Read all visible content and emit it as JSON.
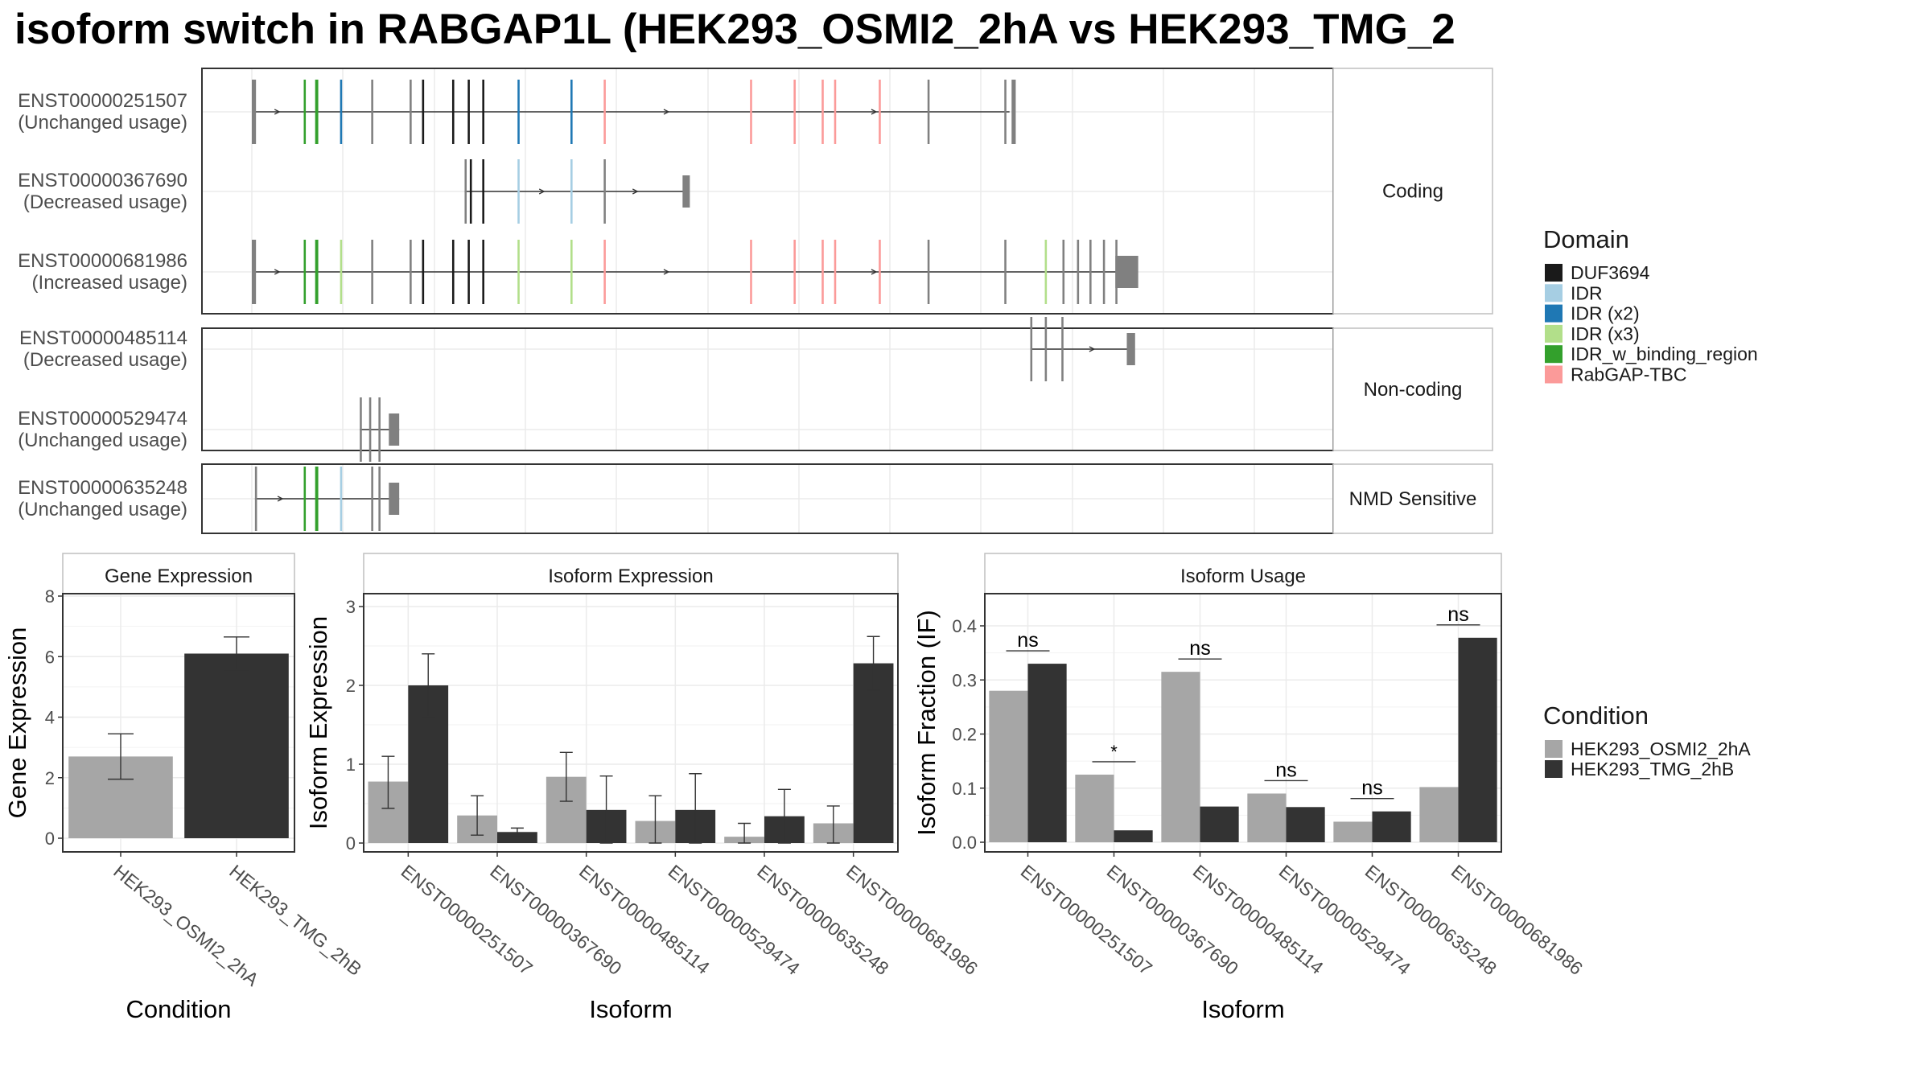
{
  "title": "isoform switch in RABGAP1L (HEK293_OSMI2_2hA vs HEK293_TMG_2",
  "colors": {
    "DUF3694": "#1a1a1a",
    "IDR": "#a6cee3",
    "IDR (x2)": "#1f78b4",
    "IDR (x3)": "#b2df8a",
    "IDR_w_binding_region": "#33a02c",
    "RabGAP-TBC": "#fb9a99",
    "none": "#808080",
    "cond1": "#a6a6a6",
    "cond2": "#333333"
  },
  "structure": {
    "facets": [
      {
        "label": "Coding",
        "rows": [
          {
            "id": "ENST00000251507",
            "usage": "(Unchanged usage)"
          },
          {
            "id": "ENST00000367690",
            "usage": "(Decreased usage)"
          },
          {
            "id": "ENST00000681986",
            "usage": "(Increased usage)"
          }
        ]
      },
      {
        "label": "Non-coding",
        "rows": [
          {
            "id": "ENST00000485114",
            "usage": "(Decreased usage)"
          },
          {
            "id": "ENST00000529474",
            "usage": "(Unchanged usage)"
          }
        ]
      },
      {
        "label": "NMD Sensitive",
        "rows": [
          {
            "id": "ENST00000635248",
            "usage": "(Unchanged usage)"
          }
        ]
      }
    ],
    "transcripts": {
      "ENST00000251507": {
        "span": [
          0.0,
          0.73
        ],
        "exons": [
          [
            0.0,
            0.004,
            "none"
          ],
          [
            0.05,
            0.052,
            "IDR_w_binding_region"
          ],
          [
            0.061,
            0.064,
            "IDR_w_binding_region"
          ],
          [
            0.085,
            0.087,
            "IDR (x2)"
          ],
          [
            0.115,
            0.117,
            "none"
          ],
          [
            0.152,
            0.154,
            "none"
          ],
          [
            0.164,
            0.166,
            "DUF3694"
          ],
          [
            0.193,
            0.195,
            "DUF3694"
          ],
          [
            0.208,
            0.21,
            "DUF3694"
          ],
          [
            0.222,
            0.224,
            "DUF3694"
          ],
          [
            0.256,
            0.258,
            "IDR (x2)"
          ],
          [
            0.307,
            0.309,
            "IDR (x2)"
          ],
          [
            0.339,
            0.341,
            "RabGAP-TBC"
          ],
          [
            0.48,
            0.482,
            "RabGAP-TBC"
          ],
          [
            0.522,
            0.524,
            "RabGAP-TBC"
          ],
          [
            0.549,
            0.551,
            "RabGAP-TBC"
          ],
          [
            0.561,
            0.563,
            "RabGAP-TBC"
          ],
          [
            0.604,
            0.606,
            "RabGAP-TBC"
          ],
          [
            0.651,
            0.653,
            "none"
          ],
          [
            0.725,
            0.727,
            "none"
          ],
          [
            0.732,
            0.736,
            "none"
          ]
        ],
        "chevrons": [
          0.025,
          0.4,
          0.6
        ]
      },
      "ENST00000367690": {
        "span": [
          0.205,
          0.42
        ],
        "exons": [
          [
            0.205,
            0.207,
            "none"
          ],
          [
            0.21,
            0.212,
            "DUF3694"
          ],
          [
            0.222,
            0.224,
            "DUF3694"
          ],
          [
            0.256,
            0.258,
            "IDR"
          ],
          [
            0.307,
            0.309,
            "IDR"
          ],
          [
            0.339,
            0.341,
            "none"
          ],
          [
            0.415,
            0.422,
            "none"
          ]
        ],
        "chevrons": [
          0.28,
          0.37
        ]
      },
      "ENST00000681986": {
        "span": [
          0.0,
          0.85
        ],
        "exons": [
          [
            0.0,
            0.004,
            "none"
          ],
          [
            0.05,
            0.052,
            "IDR_w_binding_region"
          ],
          [
            0.061,
            0.064,
            "IDR_w_binding_region"
          ],
          [
            0.085,
            0.087,
            "IDR (x3)"
          ],
          [
            0.115,
            0.117,
            "none"
          ],
          [
            0.152,
            0.154,
            "none"
          ],
          [
            0.164,
            0.166,
            "DUF3694"
          ],
          [
            0.193,
            0.195,
            "DUF3694"
          ],
          [
            0.208,
            0.21,
            "DUF3694"
          ],
          [
            0.222,
            0.224,
            "DUF3694"
          ],
          [
            0.256,
            0.258,
            "IDR (x3)"
          ],
          [
            0.307,
            0.309,
            "IDR (x3)"
          ],
          [
            0.339,
            0.341,
            "RabGAP-TBC"
          ],
          [
            0.48,
            0.482,
            "RabGAP-TBC"
          ],
          [
            0.522,
            0.524,
            "RabGAP-TBC"
          ],
          [
            0.549,
            0.551,
            "RabGAP-TBC"
          ],
          [
            0.561,
            0.563,
            "RabGAP-TBC"
          ],
          [
            0.604,
            0.606,
            "RabGAP-TBC"
          ],
          [
            0.651,
            0.653,
            "none"
          ],
          [
            0.725,
            0.727,
            "none"
          ],
          [
            0.764,
            0.766,
            "IDR (x3)"
          ],
          [
            0.781,
            0.783,
            "none"
          ],
          [
            0.795,
            0.797,
            "none"
          ],
          [
            0.807,
            0.809,
            "none"
          ],
          [
            0.82,
            0.822,
            "none"
          ],
          [
            0.832,
            0.834,
            "none"
          ],
          [
            0.832,
            0.854,
            "none"
          ]
        ],
        "chevrons": [
          0.025,
          0.4,
          0.6
        ]
      },
      "ENST00000485114": {
        "span": [
          0.75,
          0.85
        ],
        "exons": [
          [
            0.75,
            0.752,
            "none"
          ],
          [
            0.764,
            0.766,
            "none"
          ],
          [
            0.78,
            0.782,
            "none"
          ],
          [
            0.843,
            0.851,
            "none"
          ]
        ],
        "chevrons": [
          0.81
        ]
      },
      "ENST00000529474": {
        "span": [
          0.104,
          0.142
        ],
        "exons": [
          [
            0.104,
            0.106,
            "none"
          ],
          [
            0.113,
            0.115,
            "none"
          ],
          [
            0.122,
            0.124,
            "none"
          ],
          [
            0.132,
            0.142,
            "none"
          ]
        ],
        "chevrons": []
      },
      "ENST00000635248": {
        "span": [
          0.003,
          0.142
        ],
        "exons": [
          [
            0.003,
            0.005,
            "none"
          ],
          [
            0.05,
            0.052,
            "IDR_w_binding_region"
          ],
          [
            0.061,
            0.064,
            "IDR_w_binding_region"
          ],
          [
            0.085,
            0.087,
            "IDR"
          ],
          [
            0.115,
            0.117,
            "none"
          ],
          [
            0.122,
            0.124,
            "none"
          ],
          [
            0.132,
            0.142,
            "none"
          ]
        ],
        "chevrons": [
          0.028
        ]
      }
    }
  },
  "legends": {
    "domain": {
      "title": "Domain",
      "items": [
        "DUF3694",
        "IDR",
        "IDR (x2)",
        "IDR (x3)",
        "IDR_w_binding_region",
        "RabGAP-TBC"
      ]
    },
    "condition": {
      "title": "Condition",
      "items": [
        "HEK293_OSMI2_2hA",
        "HEK293_TMG_2hB"
      ]
    }
  },
  "chart_data": [
    {
      "type": "bar",
      "title": "Gene Expression",
      "xlabel": "Condition",
      "ylabel": "Gene Expression",
      "ylim": [
        0,
        8
      ],
      "yticks": [
        "0",
        "2",
        "4",
        "6",
        "8"
      ],
      "categories": [
        "HEK293_OSMI2_2hA",
        "HEK293_TMG_2hB"
      ],
      "values": [
        2.7,
        6.1
      ],
      "errors": [
        [
          1.95,
          3.45
        ],
        [
          5.55,
          6.65
        ]
      ]
    },
    {
      "type": "bar",
      "title": "Isoform Expression",
      "xlabel": "Isoform",
      "ylabel": "Isoform Expression",
      "ylim": [
        0,
        3
      ],
      "yticks": [
        "0",
        "1",
        "2",
        "3"
      ],
      "categories": [
        "ENST00000251507",
        "ENST00000367690",
        "ENST00000485114",
        "ENST00000529474",
        "ENST00000635248",
        "ENST00000681986"
      ],
      "series": [
        {
          "name": "HEK293_OSMI2_2hA",
          "values": [
            0.78,
            0.35,
            0.84,
            0.28,
            0.08,
            0.25
          ],
          "errors": [
            [
              0.44,
              1.1
            ],
            [
              0.1,
              0.6
            ],
            [
              0.53,
              1.15
            ],
            [
              0.0,
              0.6
            ],
            [
              0.0,
              0.25
            ],
            [
              0.0,
              0.47
            ]
          ]
        },
        {
          "name": "HEK293_TMG_2hB",
          "values": [
            2.0,
            0.14,
            0.42,
            0.42,
            0.34,
            2.28
          ],
          "errors": [
            [
              1.6,
              2.4
            ],
            [
              0.09,
              0.19
            ],
            [
              0.0,
              0.85
            ],
            [
              0.0,
              0.88
            ],
            [
              0.0,
              0.68
            ],
            [
              1.94,
              2.62
            ]
          ]
        }
      ]
    },
    {
      "type": "bar",
      "title": "Isoform Usage",
      "xlabel": "Isoform",
      "ylabel": "Isoform Fraction (IF)",
      "ylim": [
        0,
        0.45
      ],
      "yticks": [
        "0.0",
        "0.1",
        "0.2",
        "0.3",
        "0.4"
      ],
      "categories": [
        "ENST00000251507",
        "ENST00000367690",
        "ENST00000485114",
        "ENST00000529474",
        "ENST00000635248",
        "ENST00000681986"
      ],
      "series": [
        {
          "name": "HEK293_OSMI2_2hA",
          "values": [
            0.28,
            0.125,
            0.315,
            0.09,
            0.038,
            0.102
          ]
        },
        {
          "name": "HEK293_TMG_2hB",
          "values": [
            0.33,
            0.022,
            0.066,
            0.065,
            0.057,
            0.378
          ]
        }
      ],
      "annotations": [
        "ns",
        "*",
        "ns",
        "ns",
        "ns",
        "ns"
      ]
    }
  ]
}
